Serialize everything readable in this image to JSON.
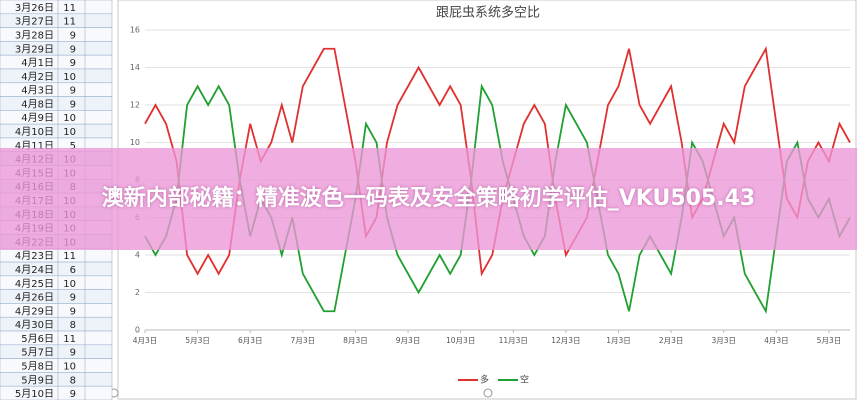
{
  "spreadsheet": {
    "rows": [
      [
        "3月26日",
        11
      ],
      [
        "3月27日",
        11
      ],
      [
        "3月28日",
        9
      ],
      [
        "3月29日",
        9
      ],
      [
        "4月1日",
        9
      ],
      [
        "4月2日",
        10
      ],
      [
        "4月3日",
        9
      ],
      [
        "4月8日",
        9
      ],
      [
        "4月9日",
        10
      ],
      [
        "4月10日",
        10
      ],
      [
        "4月11日",
        5
      ],
      [
        "4月12日",
        10
      ],
      [
        "4月15日",
        10
      ],
      [
        "4月16日",
        8
      ],
      [
        "4月17日",
        10
      ],
      [
        "4月18日",
        10
      ],
      [
        "4月19日",
        10
      ],
      [
        "4月22日",
        10
      ],
      [
        "4月23日",
        11
      ],
      [
        "4月24日",
        6
      ],
      [
        "4月25日",
        10
      ],
      [
        "4月26日",
        9
      ],
      [
        "4月29日",
        9
      ],
      [
        "4月30日",
        8
      ],
      [
        "5月6日",
        11
      ],
      [
        "5月7日",
        9
      ],
      [
        "5月8日",
        10
      ],
      [
        "5月9日",
        8
      ],
      [
        "5月10日",
        9
      ]
    ]
  },
  "chart_data": {
    "type": "line",
    "title": "跟屁虫系统多空比",
    "xlim": [
      0,
      67
    ],
    "xticks": [
      {
        "value": 0,
        "label": "4月3日"
      },
      {
        "value": 5,
        "label": "5月3日"
      },
      {
        "value": 10,
        "label": "6月3日"
      },
      {
        "value": 15,
        "label": "7月3日"
      },
      {
        "value": 20,
        "label": "8月3日"
      },
      {
        "value": 25,
        "label": "9月3日"
      },
      {
        "value": 30,
        "label": "10月3日"
      },
      {
        "value": 35,
        "label": "11月3日"
      },
      {
        "value": 40,
        "label": "12月3日"
      },
      {
        "value": 45,
        "label": "1月3日"
      },
      {
        "value": 50,
        "label": "2月3日"
      },
      {
        "value": 55,
        "label": "3月3日"
      },
      {
        "value": 60,
        "label": "4月3日"
      },
      {
        "value": 65,
        "label": "5月3日"
      }
    ],
    "ylim": [
      0,
      16
    ],
    "yticks": [
      0,
      2,
      4,
      6,
      8,
      10,
      12,
      14,
      16
    ],
    "grid": true,
    "legend": "bottom",
    "series": [
      {
        "name": "多",
        "color": "#e03030",
        "values": [
          11,
          12,
          11,
          9,
          4,
          3,
          4,
          3,
          4,
          8,
          11,
          9,
          10,
          12,
          10,
          13,
          14,
          15,
          15,
          12,
          9,
          5,
          6,
          10,
          12,
          13,
          14,
          13,
          12,
          13,
          12,
          8,
          3,
          4,
          7,
          9,
          11,
          12,
          11,
          7,
          4,
          5,
          6,
          9,
          12,
          13,
          15,
          12,
          11,
          12,
          13,
          10,
          6,
          7,
          9,
          11,
          10,
          13,
          14,
          15,
          11,
          7,
          6,
          9,
          10,
          9,
          11,
          10
        ]
      },
      {
        "name": "空",
        "color": "#20a030",
        "values": [
          5,
          4,
          5,
          7,
          12,
          13,
          12,
          13,
          12,
          8,
          5,
          7,
          6,
          4,
          6,
          3,
          2,
          1,
          1,
          4,
          7,
          11,
          10,
          6,
          4,
          3,
          2,
          3,
          4,
          3,
          4,
          8,
          13,
          12,
          9,
          7,
          5,
          4,
          5,
          9,
          12,
          11,
          10,
          7,
          4,
          3,
          1,
          4,
          5,
          4,
          3,
          6,
          10,
          9,
          7,
          5,
          6,
          3,
          2,
          1,
          5,
          9,
          10,
          7,
          6,
          7,
          5,
          6
        ]
      }
    ]
  },
  "banner": {
    "title": "澳新内部秘籍：精准波色一码表及安全策略初学评估_VKU505.43"
  }
}
